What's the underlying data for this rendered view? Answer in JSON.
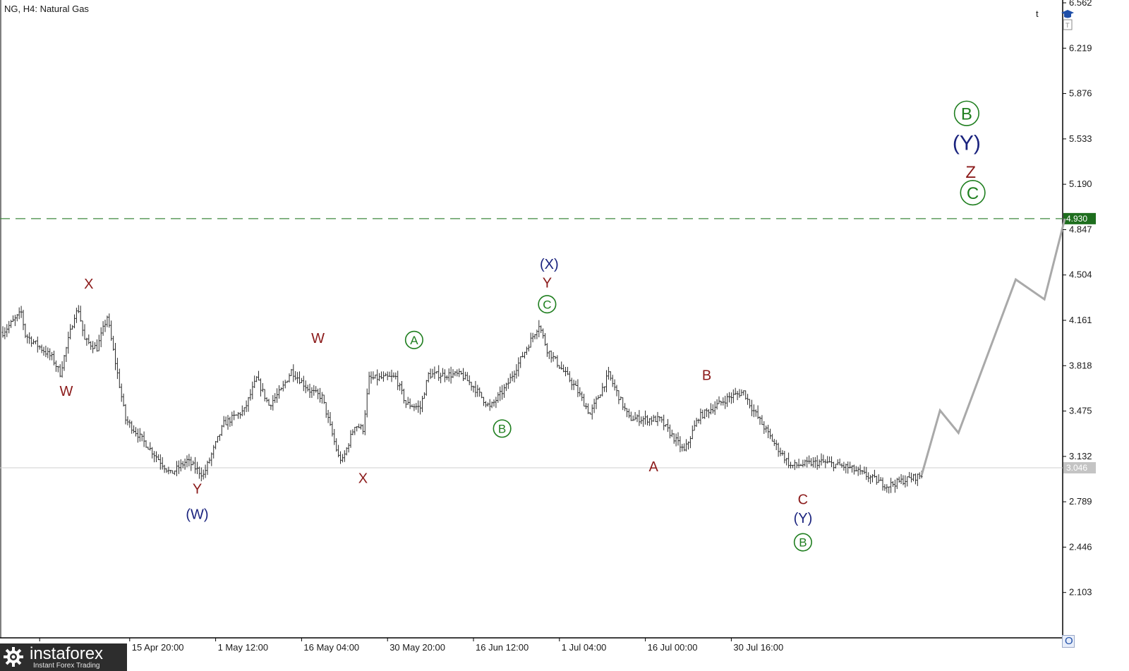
{
  "header": {
    "title": "NG, H4:  Natural Gas"
  },
  "watermark": {
    "name": "instaforex",
    "tagline": "Instant Forex Trading"
  },
  "toolbar": {
    "corner_letter": "t",
    "bottom_button": "O"
  },
  "colors": {
    "candles": "#2a2a2a",
    "projection": "#a9a9a9",
    "target_line": "#3e8a3e",
    "target_badge": "#1e6e1e",
    "current_line": "#cfcfcf",
    "current_badge": "#c4c4c4",
    "wave_minor": "#8b1a1a",
    "wave_intermediate": "#1a237e",
    "wave_primary": "#1e7e1e"
  },
  "chart_data": {
    "type": "line",
    "ylim": [
      1.76,
      6.562
    ],
    "y_ticks": [
      6.562,
      6.219,
      5.876,
      5.533,
      5.19,
      4.847,
      4.504,
      4.161,
      3.818,
      3.475,
      3.132,
      2.789,
      2.446,
      2.103
    ],
    "y_tick_labels": [
      "6.562",
      "6.219",
      "5.876",
      "5.533",
      "5.190",
      "4.847",
      "4.504",
      "4.161",
      "3.818",
      "3.475",
      "3.132",
      "2.789",
      "2.446",
      "2.103"
    ],
    "x_tick_labels": [
      {
        "label": "04:00",
        "bar": 18
      },
      {
        "label": "15 Apr 20:00",
        "bar": 62
      },
      {
        "label": "1 May 12:00",
        "bar": 104
      },
      {
        "label": "16 May 04:00",
        "bar": 146
      },
      {
        "label": "30 May 20:00",
        "bar": 188
      },
      {
        "label": "16 Jun 12:00",
        "bar": 230
      },
      {
        "label": "1 Jul 04:00",
        "bar": 272
      },
      {
        "label": "16 Jul 00:00",
        "bar": 314
      },
      {
        "label": "30 Jul 16:00",
        "bar": 356
      }
    ],
    "bar_count": 396,
    "price_path": [
      [
        0,
        4.07
      ],
      [
        9,
        4.22
      ],
      [
        11,
        4.05
      ],
      [
        24,
        3.88
      ],
      [
        28,
        3.76
      ],
      [
        35,
        4.2
      ],
      [
        37,
        4.24
      ],
      [
        40,
        4.01
      ],
      [
        46,
        3.95
      ],
      [
        51,
        4.19
      ],
      [
        60,
        3.41
      ],
      [
        74,
        3.15
      ],
      [
        82,
        3.0
      ],
      [
        90,
        3.1
      ],
      [
        98,
        2.99
      ],
      [
        108,
        3.38
      ],
      [
        118,
        3.48
      ],
      [
        124,
        3.72
      ],
      [
        130,
        3.52
      ],
      [
        136,
        3.63
      ],
      [
        141,
        3.78
      ],
      [
        150,
        3.63
      ],
      [
        156,
        3.58
      ],
      [
        164,
        3.13
      ],
      [
        166,
        3.1
      ],
      [
        172,
        3.37
      ],
      [
        176,
        3.34
      ],
      [
        179,
        3.72
      ],
      [
        192,
        3.73
      ],
      [
        197,
        3.53
      ],
      [
        204,
        3.5
      ],
      [
        208,
        3.75
      ],
      [
        224,
        3.75
      ],
      [
        230,
        3.66
      ],
      [
        238,
        3.5
      ],
      [
        246,
        3.66
      ],
      [
        260,
        4.07
      ],
      [
        262,
        4.13
      ],
      [
        266,
        3.94
      ],
      [
        280,
        3.65
      ],
      [
        287,
        3.45
      ],
      [
        296,
        3.75
      ],
      [
        306,
        3.42
      ],
      [
        321,
        3.41
      ],
      [
        333,
        3.17
      ],
      [
        340,
        3.43
      ],
      [
        355,
        3.58
      ],
      [
        362,
        3.62
      ],
      [
        366,
        3.5
      ],
      [
        377,
        3.23
      ],
      [
        385,
        3.06
      ],
      [
        400,
        3.09
      ],
      [
        413,
        3.05
      ],
      [
        423,
        2.98
      ],
      [
        432,
        2.91
      ],
      [
        440,
        2.95
      ],
      [
        449,
        2.99
      ]
    ],
    "series": [
      {
        "name": "",
        "points": [
          {
            "bar": 449,
            "price": 2.99
          },
          {
            "bar": 458,
            "price": 3.48
          },
          {
            "bar": 467,
            "price": 3.31
          },
          {
            "bar": 495,
            "price": 4.47
          },
          {
            "bar": 509,
            "price": 4.32
          },
          {
            "bar": 519,
            "price": 4.93
          }
        ]
      }
    ],
    "hlines": [
      {
        "price": 4.93,
        "label": "4.930",
        "style": "dashed"
      },
      {
        "price": 3.046,
        "label": "3.046",
        "style": "solid"
      }
    ],
    "annotations": [
      {
        "text": "X",
        "bar": 42,
        "price": 4.4,
        "level": "minor"
      },
      {
        "text": "W",
        "bar": 31,
        "price": 3.59,
        "level": "minor"
      },
      {
        "text": "Y",
        "bar": 95,
        "price": 2.85,
        "level": "minor"
      },
      {
        "text": "(W)",
        "bar": 95,
        "price": 2.66,
        "level": "intermediate"
      },
      {
        "text": "W",
        "bar": 154,
        "price": 3.99,
        "level": "minor"
      },
      {
        "text": "X",
        "bar": 176,
        "price": 2.93,
        "level": "minor"
      },
      {
        "text": "A",
        "bar": 201,
        "price": 3.98,
        "level": "primary"
      },
      {
        "text": "B",
        "bar": 244,
        "price": 3.31,
        "level": "primary"
      },
      {
        "text": "(X)",
        "bar": 267,
        "price": 4.55,
        "level": "intermediate"
      },
      {
        "text": "Y",
        "bar": 266,
        "price": 4.41,
        "level": "minor"
      },
      {
        "text": "C",
        "bar": 266,
        "price": 4.25,
        "level": "primary"
      },
      {
        "text": "A",
        "bar": 318,
        "price": 3.02,
        "level": "minor"
      },
      {
        "text": "B",
        "bar": 344,
        "price": 3.71,
        "level": "minor"
      },
      {
        "text": "C",
        "bar": 391,
        "price": 2.77,
        "level": "minor"
      },
      {
        "text": "(Y)",
        "bar": 391,
        "price": 2.63,
        "level": "intermediate"
      },
      {
        "text": "B",
        "bar": 391,
        "price": 2.45,
        "level": "primary"
      },
      {
        "text": "B",
        "bar": 471,
        "price": 5.68,
        "level": "primary"
      },
      {
        "text": "(Y)",
        "bar": 471,
        "price": 5.45,
        "level": "intermediate"
      },
      {
        "text": "Z",
        "bar": 473,
        "price": 5.24,
        "level": "minor"
      },
      {
        "text": "C",
        "bar": 474,
        "price": 5.08,
        "level": "primary"
      }
    ]
  }
}
